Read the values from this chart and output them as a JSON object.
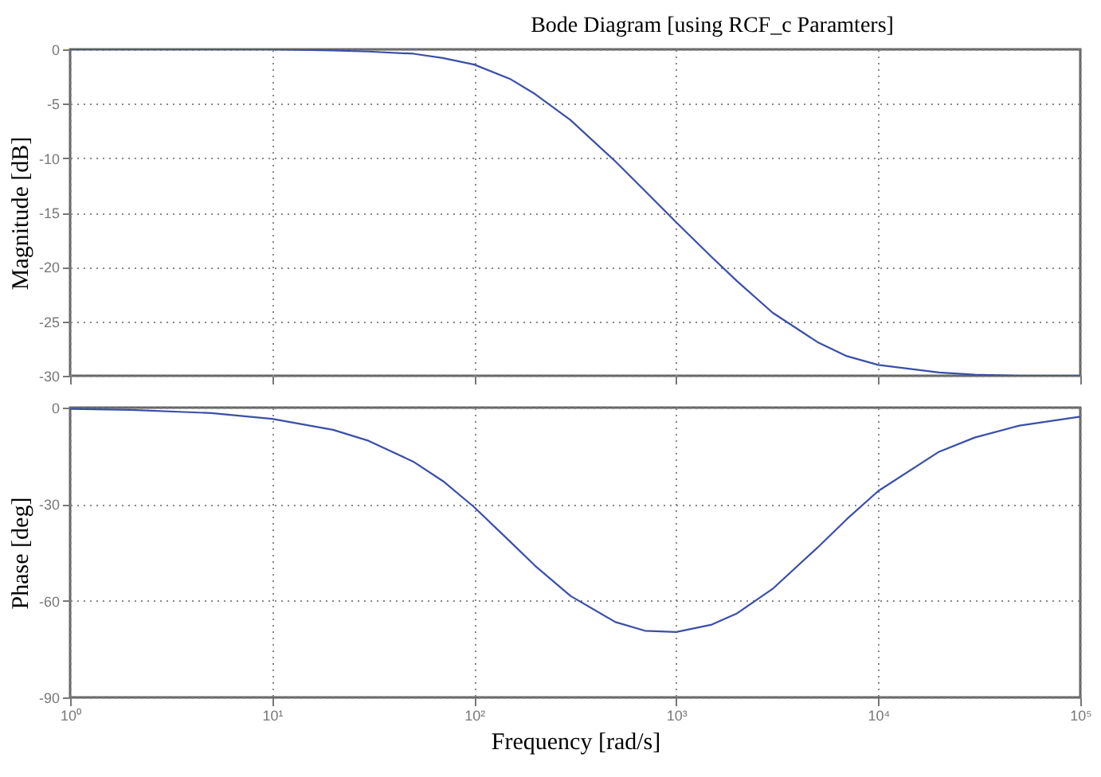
{
  "chart_data": [
    {
      "type": "line",
      "title": "Bode Diagram [using RCF_c Paramters]",
      "ylabel": "Magnitude [dB]",
      "log": "x",
      "grid": true,
      "tick_labels": "y",
      "xlim": [
        1,
        100000
      ],
      "xticks": [
        1,
        10,
        100,
        1000,
        10000,
        100000
      ],
      "ylim": [
        -30,
        0
      ],
      "yticks": [
        -30,
        -25,
        -20,
        -15,
        -10,
        -5,
        0
      ],
      "x": [
        1,
        2,
        5,
        10,
        20,
        30,
        50,
        70,
        100,
        150,
        200,
        300,
        500,
        700,
        1000,
        1500,
        2000,
        3000,
        5000,
        7000,
        10000,
        20000,
        30000,
        50000,
        100000
      ],
      "series": [
        {
          "color": "#3a4fa8",
          "values": [
            0,
            0,
            0,
            0,
            -0.1,
            -0.2,
            -0.4,
            -0.8,
            -1.4,
            -2.7,
            -4.1,
            -6.5,
            -10.3,
            -13,
            -15.9,
            -19.1,
            -21.3,
            -24.2,
            -26.9,
            -28.2,
            -29,
            -29.7,
            -29.9,
            -30,
            -30
          ]
        }
      ]
    },
    {
      "type": "line",
      "xlabel": "Frequency [rad/s]",
      "ylabel": "Phase [deg]",
      "log": "x",
      "grid": true,
      "xlim": [
        1,
        100000
      ],
      "xticks": [
        {
          "value": 1,
          "label": "10⁰"
        },
        {
          "value": 10,
          "label": "10¹"
        },
        {
          "value": 100,
          "label": "10²"
        },
        {
          "value": 1000,
          "label": "10³"
        },
        {
          "value": 10000,
          "label": "10⁴"
        },
        {
          "value": 100000,
          "label": "10⁵"
        }
      ],
      "ylim": [
        -90,
        0
      ],
      "yticks": [
        -90,
        -60,
        -30,
        0
      ],
      "x": [
        1,
        2,
        5,
        10,
        20,
        30,
        50,
        70,
        100,
        150,
        200,
        300,
        500,
        700,
        1000,
        1500,
        2000,
        3000,
        5000,
        7000,
        10000,
        20000,
        30000,
        50000,
        100000
      ],
      "series": [
        {
          "color": "#3a4fa8",
          "values": [
            -0.4,
            -0.7,
            -1.7,
            -3.5,
            -6.9,
            -10.3,
            -16.8,
            -22.8,
            -30.9,
            -41.5,
            -49.1,
            -58.5,
            -66.6,
            -69.3,
            -69.7,
            -67.4,
            -63.9,
            -56.3,
            -43.5,
            -34.6,
            -25.9,
            -13.7,
            -9.3,
            -5.6,
            -2.8
          ]
        }
      ]
    }
  ]
}
